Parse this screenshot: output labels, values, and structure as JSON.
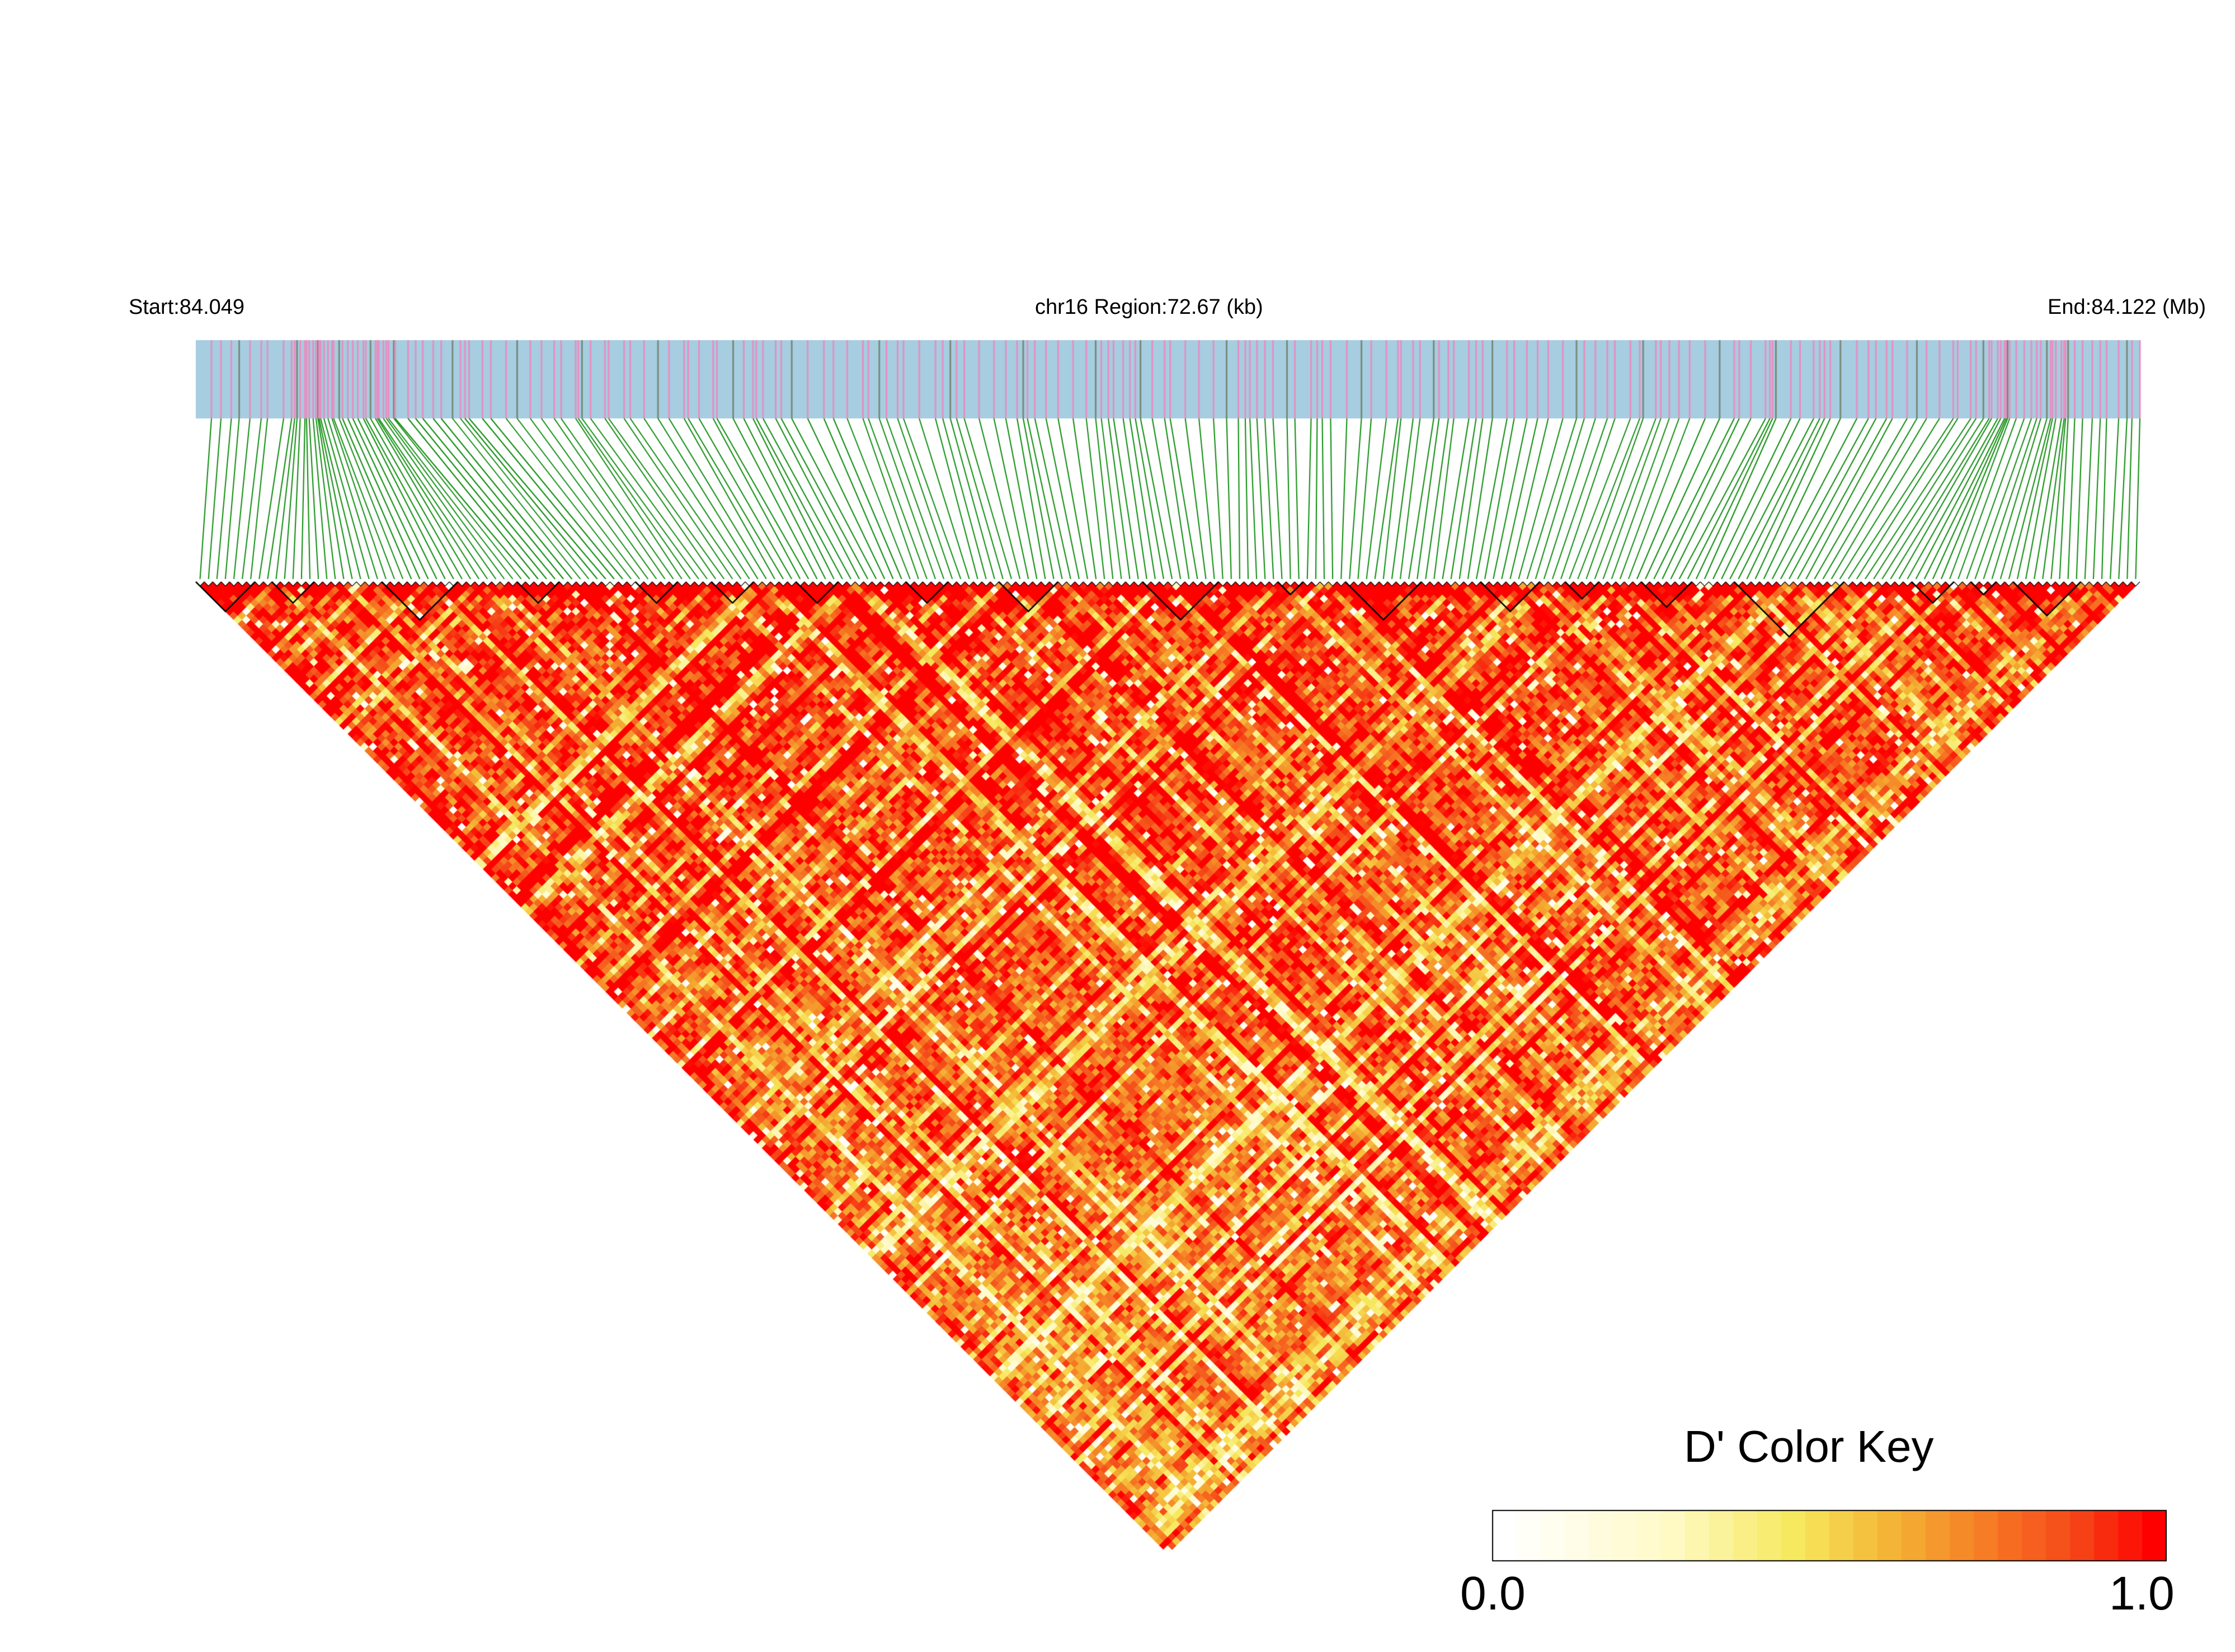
{
  "header": {
    "start_label": "Start:84.049",
    "region_label": "chr16 Region:72.67 (kb)",
    "end_label": "End:84.122 (Mb)"
  },
  "color_key": {
    "title": "D' Color Key",
    "min_label": "0.0",
    "max_label": "1.0",
    "colors": [
      "#ffffff",
      "#fffbe6",
      "#f8f07a",
      "#efe34a",
      "#f2b233",
      "#f58a26",
      "#f65a1e",
      "#f61a0f",
      "#ff0000"
    ]
  },
  "chart_data": {
    "type": "heatmap",
    "description_type": "linkage-disequilibrium-triangle",
    "chromosome": "chr16",
    "start_mb": 84.049,
    "end_mb": 84.122,
    "region_kb": 72.67,
    "metric": "D'",
    "value_range": [
      0.0,
      1.0
    ],
    "snp_count": 230,
    "colors": {
      "gene_track": "#a6cde0",
      "snp_mark": "#e58fc2",
      "snp_mark_dark": "#7a8a7a",
      "connector": "#0a8a0a",
      "block_outline": "#000000"
    },
    "ld_blocks": [
      {
        "from": 0,
        "to": 6
      },
      {
        "from": 9,
        "to": 13
      },
      {
        "from": 22,
        "to": 30
      },
      {
        "from": 38,
        "to": 42
      },
      {
        "from": 52,
        "to": 56
      },
      {
        "from": 61,
        "to": 65
      },
      {
        "from": 71,
        "to": 75
      },
      {
        "from": 84,
        "to": 88
      },
      {
        "from": 95,
        "to": 101
      },
      {
        "from": 112,
        "to": 120
      },
      {
        "from": 128,
        "to": 130
      },
      {
        "from": 136,
        "to": 144
      },
      {
        "from": 152,
        "to": 158
      },
      {
        "from": 162,
        "to": 165
      },
      {
        "from": 171,
        "to": 176
      },
      {
        "from": 182,
        "to": 194
      },
      {
        "from": 203,
        "to": 207
      },
      {
        "from": 210,
        "to": 212
      },
      {
        "from": 215,
        "to": 222
      }
    ]
  }
}
